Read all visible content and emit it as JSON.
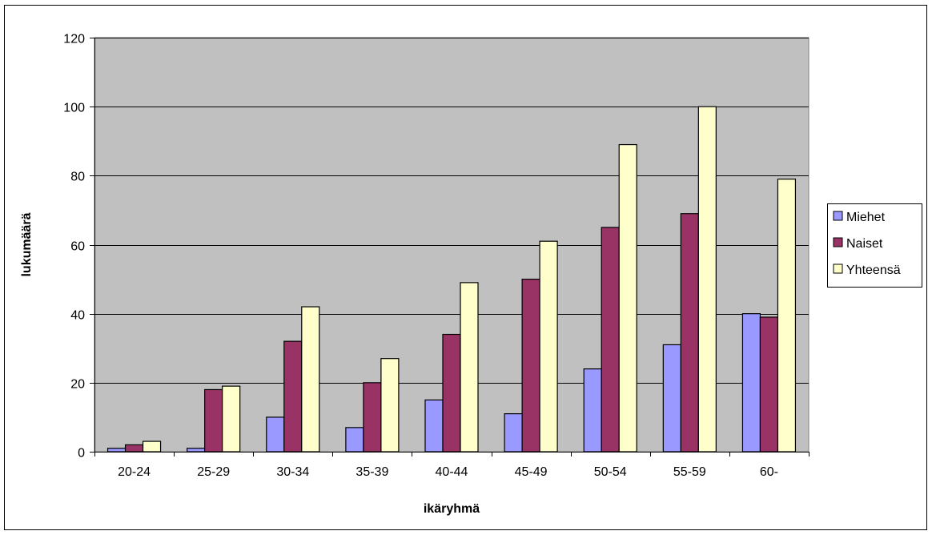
{
  "chart_data": {
    "type": "bar",
    "title": "",
    "xlabel": "ikäryhmä",
    "ylabel": "lukumäärä",
    "categories": [
      "20-24",
      "25-29",
      "30-34",
      "35-39",
      "40-44",
      "45-49",
      "50-54",
      "55-59",
      "60-"
    ],
    "series": [
      {
        "name": "Miehet",
        "color": "#9999ff",
        "values": [
          1,
          1,
          10,
          7,
          15,
          11,
          24,
          31,
          40
        ]
      },
      {
        "name": "Naiset",
        "color": "#993366",
        "values": [
          2,
          18,
          32,
          20,
          34,
          50,
          65,
          69,
          39
        ]
      },
      {
        "name": "Yhteensä",
        "color": "#ffffcc",
        "values": [
          3,
          19,
          42,
          27,
          49,
          61,
          89,
          100,
          79
        ]
      }
    ],
    "ylim": [
      0,
      120
    ],
    "yticks": [
      0,
      20,
      40,
      60,
      80,
      100,
      120
    ],
    "grid": true,
    "plot_background": "#c0c0c0",
    "legend_position": "right"
  }
}
